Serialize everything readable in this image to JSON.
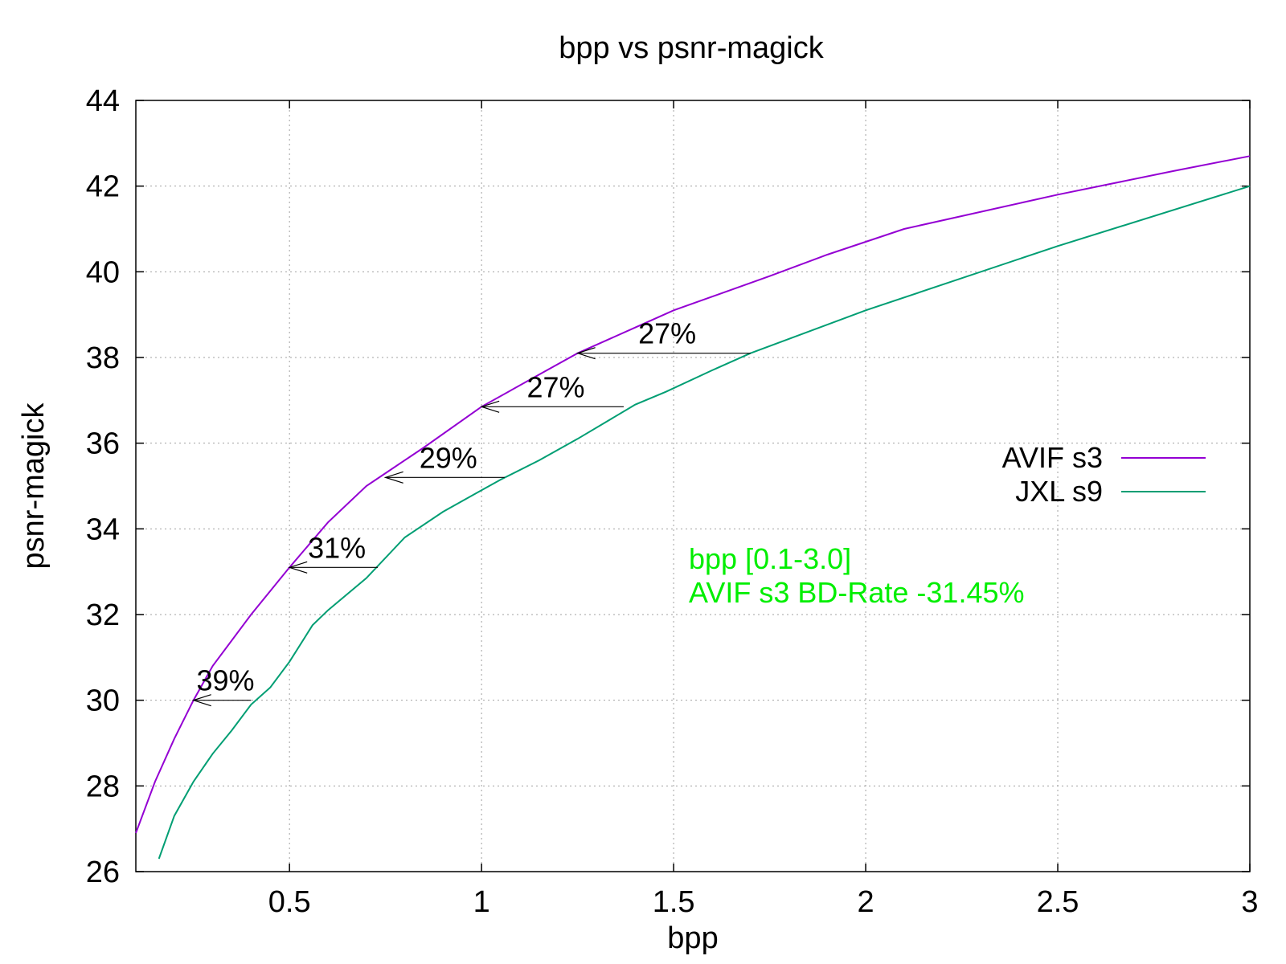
{
  "chart_data": {
    "type": "line",
    "title": "bpp vs psnr-magick",
    "xlabel": "bpp",
    "ylabel": "psnr-magick",
    "xlim": [
      0.1,
      3.0
    ],
    "ylim": [
      26,
      44
    ],
    "xticks": [
      0.5,
      1,
      1.5,
      2,
      2.5,
      3
    ],
    "xtick_labels": [
      "0.5",
      "1",
      "1.5",
      "2",
      "2.5",
      "3"
    ],
    "yticks": [
      26,
      28,
      30,
      32,
      34,
      36,
      38,
      40,
      42,
      44
    ],
    "ytick_labels": [
      "26",
      "28",
      "30",
      "32",
      "34",
      "36",
      "38",
      "40",
      "42",
      "44"
    ],
    "grid": true,
    "legend_position": "right",
    "series": [
      {
        "name": "AVIF s3",
        "color": "#9400d3",
        "x": [
          0.1,
          0.15,
          0.2,
          0.25,
          0.3,
          0.4,
          0.5,
          0.6,
          0.7,
          0.75,
          0.85,
          1.0,
          1.15,
          1.25,
          1.4,
          1.5,
          1.75,
          1.9,
          2.1,
          2.5,
          2.8,
          3.0
        ],
        "y": [
          26.9,
          28.1,
          29.1,
          30.0,
          30.8,
          32.0,
          33.1,
          34.15,
          35.0,
          35.3,
          35.9,
          36.85,
          37.6,
          38.1,
          38.7,
          39.1,
          39.9,
          40.4,
          41.0,
          41.8,
          42.35,
          42.7
        ]
      },
      {
        "name": "JXL s9",
        "color": "#009e73",
        "x": [
          0.16,
          0.2,
          0.25,
          0.3,
          0.35,
          0.4,
          0.45,
          0.5,
          0.56,
          0.6,
          0.7,
          0.8,
          0.9,
          1.0,
          1.05,
          1.15,
          1.25,
          1.4,
          1.48,
          1.6,
          1.7,
          2.0,
          2.5,
          3.0
        ],
        "y": [
          26.3,
          27.3,
          28.1,
          28.75,
          29.3,
          29.9,
          30.3,
          30.9,
          31.75,
          32.1,
          32.85,
          33.8,
          34.4,
          34.9,
          35.15,
          35.6,
          36.1,
          36.9,
          37.2,
          37.7,
          38.1,
          39.1,
          40.6,
          42.0
        ]
      }
    ],
    "annotations": [
      {
        "text": "39%",
        "y": 30.0,
        "x_from": 0.4,
        "x_to": 0.25
      },
      {
        "text": "31%",
        "y": 33.1,
        "x_from": 0.73,
        "x_to": 0.5
      },
      {
        "text": "29%",
        "y": 35.2,
        "x_from": 1.06,
        "x_to": 0.75
      },
      {
        "text": "27%",
        "y": 36.85,
        "x_from": 1.37,
        "x_to": 1.0
      },
      {
        "text": "27%",
        "y": 38.1,
        "x_from": 1.7,
        "x_to": 1.25
      }
    ],
    "notes": [
      "bpp [0.1-3.0]",
      "AVIF s3 BD-Rate -31.45%"
    ],
    "notes_color": "#00ee00"
  }
}
